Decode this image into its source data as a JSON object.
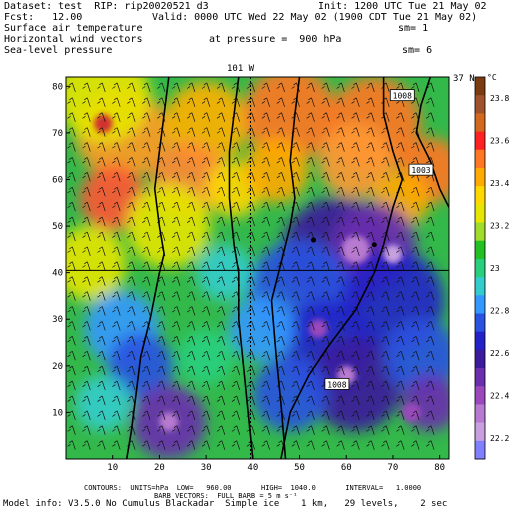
{
  "header": {
    "dataset": "Dataset: test  RIP: rip20020521 d3",
    "init": "Init: 1200 UTC Tue 21 May 02",
    "fcst": "Fcst:   12.00",
    "valid": "Valid: 0000 UTC Wed 22 May 02 (1900 CDT Tue 21 May 02)",
    "field1": "Surface air temperature",
    "sm1": "sm= 1",
    "field2": "Horizontal wind vectors",
    "pressure": "at pressure =  900 hPa",
    "field3": "Sea-level pressure",
    "sm2": "sm= 6"
  },
  "footer": {
    "contours": "CONTOURS:  UNITS=hPa  LOW=   960.00       HIGH=  1040.0       INTERVAL=   1.0000",
    "barbs": "BARB VECTORS:  FULL BARB = 5 m s⁻¹",
    "model": "Model info: V3.5.0 No Cumulus Blackadar  Simple ice    1 km,   29 levels,    2 sec"
  },
  "map_labels": {
    "lon": "101 W",
    "lat": "37 N"
  },
  "colorbar": {
    "unit": "°C",
    "labels": [
      "23.8",
      "23.6",
      "23.4",
      "23.2",
      "23",
      "22.8",
      "22.6",
      "22.4",
      "22.2"
    ],
    "colors": [
      "#7a3b10",
      "#a0522d",
      "#d2691e",
      "#ff2222",
      "#ff7722",
      "#ffaa00",
      "#ffd800",
      "#e6e600",
      "#a0dc2a",
      "#22c022",
      "#2acf7e",
      "#33cccc",
      "#3399ff",
      "#2a52e0",
      "#2222c8",
      "#3b1a9c",
      "#6a2eae",
      "#9a48bc",
      "#b87ad0",
      "#c8a0e0",
      "#8080ff"
    ]
  },
  "contours": [
    {
      "label": "1008"
    },
    {
      "label": "1003"
    },
    {
      "label": "1008"
    }
  ],
  "chart_data": {
    "type": "heatmap",
    "title": "Surface air temperature",
    "x_ticks": [
      10,
      20,
      30,
      40,
      50,
      60,
      70,
      80
    ],
    "y_ticks": [
      10,
      20,
      30,
      40,
      50,
      60,
      70,
      80
    ],
    "xlim": [
      0,
      82
    ],
    "ylim": [
      0,
      82
    ],
    "colorbar_range": [
      22.1,
      23.9
    ],
    "warm_regions": [
      {
        "x": 8,
        "y": 70
      },
      {
        "x": 33,
        "y": 70
      },
      {
        "x": 12,
        "y": 56
      },
      {
        "x": 26,
        "y": 60
      },
      {
        "x": 65,
        "y": 70
      },
      {
        "x": 45,
        "y": 65
      },
      {
        "x": 70,
        "y": 55
      }
    ],
    "cool_regions": [
      {
        "x": 62,
        "y": 45
      },
      {
        "x": 50,
        "y": 32
      },
      {
        "x": 58,
        "y": 20
      },
      {
        "x": 70,
        "y": 30
      },
      {
        "x": 12,
        "y": 25
      },
      {
        "x": 20,
        "y": 8
      },
      {
        "x": 78,
        "y": 10
      }
    ],
    "markers": [
      {
        "x": 53,
        "y": 47
      },
      {
        "x": 66,
        "y": 46
      }
    ]
  }
}
